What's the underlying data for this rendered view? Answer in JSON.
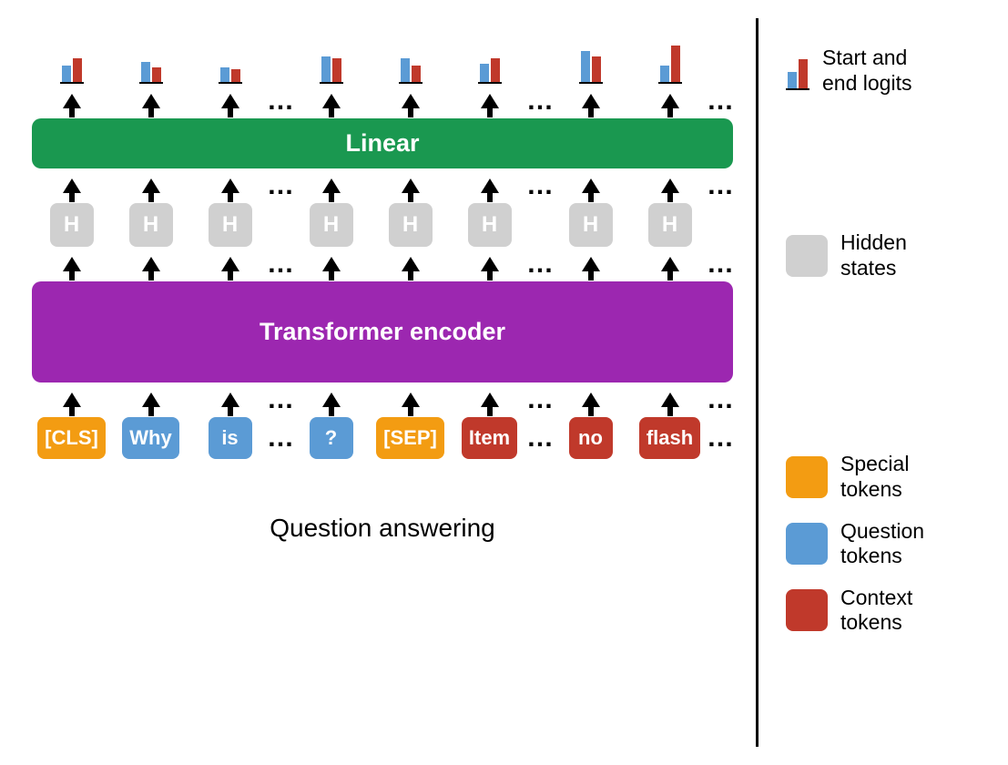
{
  "colors": {
    "bar_blue": "#5b9bd5",
    "bar_red": "#c0392b",
    "linear": "#1a9850",
    "encoder": "#9c27b0",
    "hidden": "#d0d0d0",
    "special": "#f39c12",
    "question": "#5b9bd5",
    "context": "#c0392b"
  },
  "logits": [
    {
      "blue": 18,
      "red": 26
    },
    {
      "blue": 22,
      "red": 16
    },
    {
      "blue": 16,
      "red": 14
    },
    {
      "blue": 28,
      "red": 26
    },
    {
      "blue": 26,
      "red": 18
    },
    {
      "blue": 20,
      "red": 26
    },
    {
      "blue": 34,
      "red": 28
    },
    {
      "blue": 18,
      "red": 40
    }
  ],
  "boxes": {
    "linear": "Linear",
    "encoder": "Transformer encoder"
  },
  "hidden_label": "H",
  "tokens": [
    {
      "text": "[CLS]",
      "type": "special"
    },
    {
      "text": "Why",
      "type": "question"
    },
    {
      "text": "is",
      "type": "question"
    },
    {
      "text": "?",
      "type": "question"
    },
    {
      "text": "[SEP]",
      "type": "special"
    },
    {
      "text": "Item",
      "type": "context"
    },
    {
      "text": "no",
      "type": "context"
    },
    {
      "text": "flash",
      "type": "context"
    }
  ],
  "ellipsis": "…",
  "title": "Question answering",
  "legend": {
    "logits": "Start and\nend logits",
    "logits_swatch": {
      "blue": 18,
      "red": 32
    },
    "hidden": "Hidden\nstates",
    "special": "Special\ntokens",
    "question": "Question\ntokens",
    "context": "Context\ntokens"
  }
}
